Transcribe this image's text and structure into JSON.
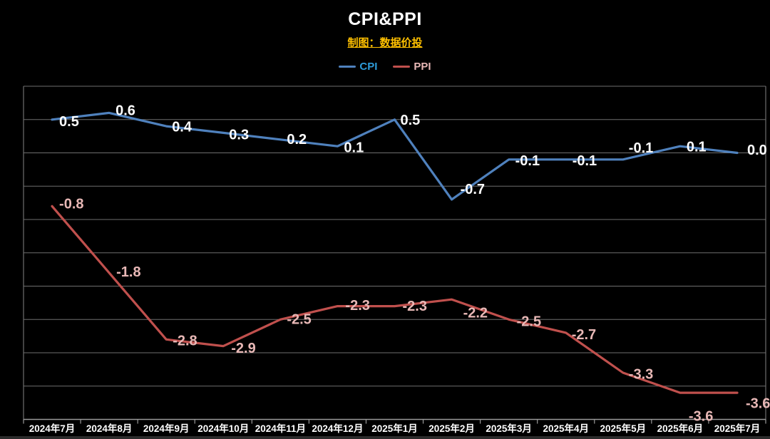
{
  "header": {
    "title": "CPI&PPI",
    "subtitle": "制图：数据价投"
  },
  "chart_data": {
    "type": "line",
    "title": "CPI&PPI",
    "subtitle": "制图：数据价投",
    "categories": [
      "2024年7月",
      "2024年8月",
      "2024年9月",
      "2024年10月",
      "2024年11月",
      "2024年12月",
      "2025年1月",
      "2025年2月",
      "2025年3月",
      "2025年4月",
      "2025年5月",
      "2025年6月",
      "2025年7月"
    ],
    "series": [
      {
        "name": "CPI",
        "line_color": "#4F81BD",
        "label_color": "#FFFFFF",
        "legend_text_color": "#2D9BD8",
        "values": [
          0.5,
          0.6,
          0.4,
          0.3,
          0.2,
          0.1,
          0.5,
          -0.7,
          -0.1,
          -0.1,
          -0.1,
          0.1,
          0.0
        ],
        "label_offsets": [
          [
            10,
            4
          ],
          [
            9,
            -2
          ],
          [
            8,
            2
          ],
          [
            8,
            4
          ],
          [
            9,
            1
          ],
          [
            9,
            3
          ],
          [
            8,
            2
          ],
          [
            12,
            -13
          ],
          [
            9,
            3
          ],
          [
            9,
            3
          ],
          [
            8,
            -15
          ],
          [
            9,
            2
          ],
          [
            14,
            -3
          ]
        ]
      },
      {
        "name": "PPI",
        "line_color": "#C0504D",
        "label_color": "#E8B8B6",
        "legend_text_color": "#E8B8B6",
        "values": [
          -0.8,
          -1.8,
          -2.8,
          -2.9,
          -2.5,
          -2.3,
          -2.3,
          -2.2,
          -2.5,
          -2.7,
          -3.3,
          -3.6,
          -3.6
        ],
        "label_offsets": [
          [
            10,
            -2
          ],
          [
            10,
            0
          ],
          [
            9,
            3
          ],
          [
            11,
            4
          ],
          [
            9,
            1
          ],
          [
            11,
            0
          ],
          [
            11,
            1
          ],
          [
            16,
            20
          ],
          [
            11,
            4
          ],
          [
            8,
            4
          ],
          [
            8,
            3
          ],
          [
            12,
            34
          ],
          [
            12,
            16
          ]
        ]
      }
    ],
    "xlabel": "",
    "ylabel": "",
    "ylim": [
      -4.0,
      1.0
    ],
    "y_grid_step": 0.5,
    "grid": true,
    "y_axis_tick_labels": "none",
    "legend_position": "top-center",
    "decimals": 1,
    "colors": {
      "background": "#000000",
      "gridline": "#6E6E6E",
      "axis": "#9A9A9A",
      "tick_label": "#FFFFFF",
      "title": "#FFFFFF",
      "subtitle": "#FFC000",
      "bottom_strip": "#2B2B2B"
    }
  }
}
